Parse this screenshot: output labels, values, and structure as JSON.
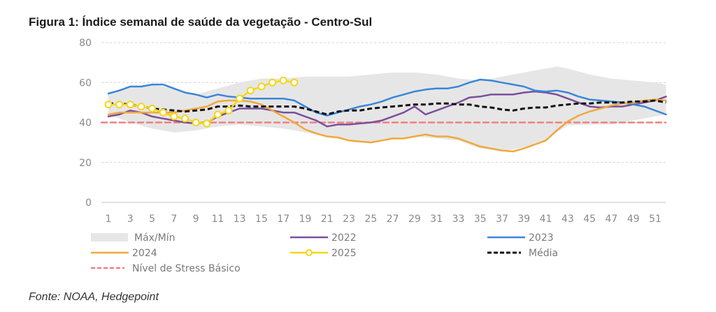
{
  "title": "Figura 1: Índice semanal de saúde da vegetação - Centro-Sul",
  "source": "Fonte: NOAA, Hedgepoint",
  "chart_data": {
    "type": "line",
    "title": "Figura 1: Índice semanal de saúde da vegetação - Centro-Sul",
    "xlabel": "",
    "ylabel": "",
    "ylim": [
      0,
      80
    ],
    "xlim": [
      1,
      52
    ],
    "yticks": [
      0,
      20,
      40,
      60,
      80
    ],
    "xticks": [
      1,
      3,
      5,
      7,
      9,
      11,
      13,
      15,
      17,
      19,
      21,
      23,
      25,
      27,
      29,
      31,
      33,
      35,
      37,
      39,
      41,
      43,
      45,
      47,
      49,
      51
    ],
    "grid": "horizontal-dashed",
    "legend_position": "bottom",
    "colors": {
      "band": "#e6e6e6",
      "2022": "#7b4f9d",
      "2023": "#3a86d9",
      "2024": "#f0a83c",
      "2025": "#f5d617",
      "media": "#111111",
      "stress": "#f08080"
    },
    "band": {
      "name": "Máx/Mín",
      "x": [
        1,
        3,
        5,
        7,
        9,
        11,
        13,
        15,
        17,
        19,
        21,
        23,
        25,
        27,
        29,
        31,
        33,
        35,
        37,
        39,
        41,
        42,
        43,
        45,
        47,
        49,
        51,
        52
      ],
      "max": [
        55,
        58,
        59,
        57,
        54,
        57,
        60,
        62,
        62,
        63,
        63,
        63,
        64,
        65,
        65,
        64,
        62,
        61,
        63,
        65,
        67,
        68,
        67,
        64,
        62,
        61,
        60,
        59
      ],
      "min": [
        44,
        40,
        37,
        35,
        36,
        38,
        39,
        38,
        37,
        35,
        33,
        31,
        30,
        32,
        33,
        32,
        31,
        27,
        25.5,
        27.5,
        31,
        35,
        38.5,
        39,
        39,
        41,
        43,
        44
      ]
    },
    "series": [
      {
        "name": "2022",
        "x": [
          1,
          2,
          3,
          4,
          5,
          6,
          7,
          8,
          9,
          10,
          11,
          12,
          13,
          14,
          15,
          16,
          17,
          18,
          19,
          20,
          21,
          22,
          23,
          24,
          25,
          26,
          27,
          28,
          29,
          30,
          31,
          32,
          33,
          34,
          35,
          36,
          37,
          38,
          39,
          40,
          41,
          42,
          43,
          44,
          45,
          46,
          47,
          48,
          49,
          50,
          51,
          52
        ],
        "values": [
          43,
          44,
          46,
          45,
          43,
          42,
          41,
          40,
          39.5,
          40,
          43,
          45,
          47,
          47,
          47,
          46,
          45,
          45,
          43,
          41,
          38,
          39,
          39,
          39.5,
          40,
          41,
          43,
          45,
          48,
          44,
          46,
          48,
          50,
          52.5,
          53,
          54,
          54,
          54,
          55,
          55.5,
          55,
          54,
          52,
          50,
          48,
          47.5,
          48,
          48,
          49,
          50,
          51,
          53
        ]
      },
      {
        "name": "2023",
        "x": [
          1,
          2,
          3,
          4,
          5,
          6,
          7,
          8,
          9,
          10,
          11,
          12,
          13,
          14,
          15,
          16,
          17,
          18,
          19,
          20,
          21,
          22,
          23,
          24,
          25,
          26,
          27,
          28,
          29,
          30,
          31,
          32,
          33,
          34,
          35,
          36,
          37,
          38,
          39,
          40,
          41,
          42,
          43,
          44,
          45,
          46,
          47,
          48,
          49,
          50,
          51,
          52
        ],
        "values": [
          54.5,
          56,
          58,
          58,
          59,
          59,
          57,
          55,
          54,
          52.5,
          54,
          53,
          52.5,
          52,
          52,
          52,
          52,
          51,
          48,
          45,
          43.5,
          45,
          46.5,
          48,
          49,
          50.5,
          52.5,
          54,
          55.5,
          56.5,
          57,
          57,
          58,
          60,
          61.5,
          61,
          60,
          59,
          58,
          56,
          55.5,
          56,
          55,
          53,
          51.5,
          51,
          50.5,
          50,
          49,
          48,
          46,
          44
        ]
      },
      {
        "name": "2024",
        "x": [
          1,
          2,
          3,
          4,
          5,
          6,
          7,
          8,
          9,
          10,
          11,
          12,
          13,
          14,
          15,
          16,
          17,
          18,
          19,
          20,
          21,
          22,
          23,
          24,
          25,
          26,
          27,
          28,
          29,
          30,
          31,
          32,
          33,
          34,
          35,
          36,
          37,
          38,
          39,
          40,
          41,
          42,
          43,
          44,
          45,
          46,
          47,
          48,
          49,
          50,
          51,
          52
        ],
        "values": [
          44,
          45,
          45,
          45,
          45,
          45,
          45,
          46,
          47,
          48,
          50.5,
          51,
          51,
          50.5,
          49,
          46,
          43,
          40,
          36.5,
          34.5,
          33,
          32.5,
          31,
          30.5,
          30,
          31,
          32,
          32,
          33,
          34,
          33,
          33,
          32,
          30,
          28,
          27,
          26,
          25.5,
          27,
          29,
          31,
          36,
          40.5,
          43.5,
          45.5,
          47,
          48.5,
          49.5,
          50,
          51,
          51.5,
          51
        ]
      },
      {
        "name": "2025",
        "x": [
          1,
          2,
          3,
          4,
          5,
          6,
          7,
          8,
          9,
          10,
          11,
          12,
          13,
          14,
          15,
          16,
          17,
          18
        ],
        "values": [
          49,
          49,
          49,
          48,
          47,
          45,
          43,
          42,
          40,
          39.5,
          44,
          46,
          52,
          56,
          58,
          60,
          61,
          60
        ],
        "markers": true
      },
      {
        "name": "Média",
        "x": [
          1,
          2,
          3,
          4,
          5,
          6,
          7,
          8,
          9,
          10,
          11,
          12,
          13,
          14,
          15,
          16,
          17,
          18,
          19,
          20,
          21,
          22,
          23,
          24,
          25,
          26,
          27,
          28,
          29,
          30,
          31,
          32,
          33,
          34,
          35,
          36,
          37,
          38,
          39,
          40,
          41,
          42,
          43,
          44,
          45,
          46,
          47,
          48,
          49,
          50,
          51,
          52
        ],
        "values": [
          49.5,
          49.5,
          49,
          48,
          47,
          46.5,
          46,
          45.5,
          46,
          46.5,
          48,
          48,
          48.5,
          48,
          48,
          48,
          48,
          48,
          47,
          45.5,
          44,
          45.5,
          46,
          46,
          47,
          47.5,
          48,
          48.5,
          49,
          49,
          49.5,
          49.5,
          49,
          49,
          48,
          47.5,
          46.5,
          46,
          47,
          47.5,
          47.5,
          48.5,
          49,
          49.5,
          49.5,
          50,
          50,
          50,
          50.5,
          50.5,
          51,
          50
        ],
        "dashed": true
      },
      {
        "name": "Nível de Stress Básico",
        "x": [
          1,
          52
        ],
        "values": [
          40,
          40
        ],
        "dashed": true
      }
    ],
    "legend": [
      {
        "key": "band",
        "label": "Máx/Mín"
      },
      {
        "key": "2022",
        "label": "2022"
      },
      {
        "key": "2023",
        "label": "2023"
      },
      {
        "key": "2024",
        "label": "2024"
      },
      {
        "key": "2025",
        "label": "2025"
      },
      {
        "key": "media",
        "label": "Média"
      },
      {
        "key": "stress",
        "label": "Nível de Stress Básico"
      }
    ]
  }
}
